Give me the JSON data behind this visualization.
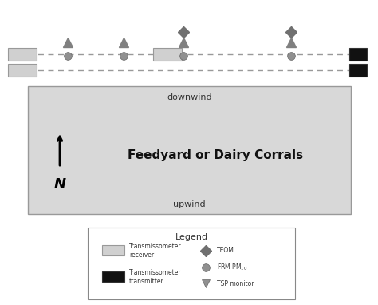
{
  "fig_width": 4.74,
  "fig_height": 3.82,
  "dpi": 100,
  "bg_color": "#ffffff",
  "field_color": "#d8d8d8",
  "field_edge_color": "#999999",
  "downwind_label": "downwind",
  "upwind_label": "upwind",
  "feedyard_label": "Feedyard or Dairy Corrals",
  "north_label": "N",
  "receiver_color": "#d0d0d0",
  "receiver_edge": "#999999",
  "transmitter_color": "#111111",
  "transmitter_edge": "#333333",
  "diamond_color": "#707070",
  "triangle_color": "#808080",
  "circle_color": "#909090",
  "circle_edge": "#666666",
  "dashed_color": "#999999",
  "legend_title": "Legend",
  "leg_receiver_label": "Transmissometer\nreceiver",
  "leg_transmitter_label": "Transmissometer\ntransmitter",
  "leg_teom_label": "TEOM",
  "leg_frm_label": "FRM PM",
  "leg_tsp_label": "TSP monitor"
}
